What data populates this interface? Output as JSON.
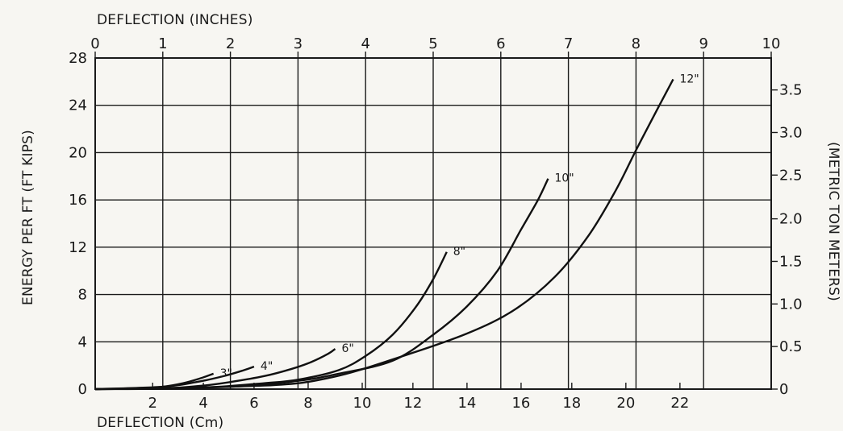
{
  "chart_data": {
    "type": "line",
    "title": "",
    "x_top_label": "DEFLECTION (INCHES)",
    "x_bottom_label": "DEFLECTION (Cm)",
    "y_left_label": "ENERGY PER FT (FT KIPS)",
    "y_right_label": "(METRIC TON METERS)",
    "x_range_inches": [
      0,
      10
    ],
    "y_range_ftkips": [
      0,
      28
    ],
    "grid": true,
    "x_top_ticks": [
      "0",
      "1",
      "2",
      "3",
      "4",
      "5",
      "6",
      "7",
      "8",
      "9",
      "10"
    ],
    "x_bottom_ticks": [
      {
        "label": "2",
        "inches": 0.85
      },
      {
        "label": "4",
        "inches": 1.6
      },
      {
        "label": "6",
        "inches": 2.35
      },
      {
        "label": "8",
        "inches": 3.15
      },
      {
        "label": "10",
        "inches": 3.95
      },
      {
        "label": "12",
        "inches": 4.7
      },
      {
        "label": "14",
        "inches": 5.5
      },
      {
        "label": "16",
        "inches": 6.3
      },
      {
        "label": "18",
        "inches": 7.05
      },
      {
        "label": "20",
        "inches": 7.85
      },
      {
        "label": "22",
        "inches": 8.65
      }
    ],
    "y_left_ticks": [
      "0",
      "4",
      "8",
      "12",
      "16",
      "20",
      "24",
      "28"
    ],
    "y_right_ticks": [
      {
        "label": "0",
        "ftkips": 0
      },
      {
        "label": "0.5",
        "ftkips": 3.6
      },
      {
        "label": "1.0",
        "ftkips": 7.2
      },
      {
        "label": "1.5",
        "ftkips": 10.8
      },
      {
        "label": "2.0",
        "ftkips": 14.4
      },
      {
        "label": "2.5",
        "ftkips": 18.1
      },
      {
        "label": "3.0",
        "ftkips": 21.7
      },
      {
        "label": "3.5",
        "ftkips": 25.3
      }
    ],
    "series": [
      {
        "name": "3\"",
        "points": [
          [
            0,
            0
          ],
          [
            0.6,
            0.05
          ],
          [
            1.0,
            0.2
          ],
          [
            1.3,
            0.5
          ],
          [
            1.55,
            0.9
          ],
          [
            1.75,
            1.3
          ]
        ]
      },
      {
        "name": "4\"",
        "points": [
          [
            0,
            0
          ],
          [
            1.0,
            0.2
          ],
          [
            1.5,
            0.6
          ],
          [
            1.9,
            1.1
          ],
          [
            2.2,
            1.6
          ],
          [
            2.35,
            1.9
          ]
        ]
      },
      {
        "name": "6\"",
        "points": [
          [
            0,
            0
          ],
          [
            1.0,
            0.05
          ],
          [
            1.6,
            0.3
          ],
          [
            2.0,
            0.6
          ],
          [
            2.5,
            1.1
          ],
          [
            2.9,
            1.7
          ],
          [
            3.2,
            2.3
          ],
          [
            3.45,
            3.0
          ],
          [
            3.55,
            3.4
          ]
        ]
      },
      {
        "name": "8\"",
        "points": [
          [
            0,
            0
          ],
          [
            1.5,
            0.1
          ],
          [
            2.5,
            0.5
          ],
          [
            3.0,
            0.8
          ],
          [
            3.6,
            1.6
          ],
          [
            4.0,
            2.8
          ],
          [
            4.4,
            4.6
          ],
          [
            4.75,
            7.0
          ],
          [
            5.0,
            9.3
          ],
          [
            5.2,
            11.6
          ]
        ]
      },
      {
        "name": "10\"",
        "points": [
          [
            0,
            0
          ],
          [
            2.0,
            0.2
          ],
          [
            3.0,
            0.7
          ],
          [
            3.6,
            1.3
          ],
          [
            4.4,
            2.4
          ],
          [
            5.0,
            4.6
          ],
          [
            5.5,
            7.0
          ],
          [
            5.95,
            10.0
          ],
          [
            6.3,
            13.5
          ],
          [
            6.55,
            16.0
          ],
          [
            6.7,
            17.8
          ]
        ]
      },
      {
        "name": "12\"",
        "points": [
          [
            0,
            0
          ],
          [
            2.5,
            0.3
          ],
          [
            3.5,
            1.0
          ],
          [
            4.5,
            2.7
          ],
          [
            5.5,
            4.7
          ],
          [
            6.2,
            6.7
          ],
          [
            6.8,
            9.5
          ],
          [
            7.3,
            13.0
          ],
          [
            7.7,
            16.8
          ],
          [
            8.0,
            20.2
          ],
          [
            8.3,
            23.5
          ],
          [
            8.55,
            26.2
          ]
        ]
      }
    ],
    "annotations": [
      "3\"",
      "4\"",
      "6\"",
      "8\"",
      "10\"",
      "12\""
    ]
  }
}
